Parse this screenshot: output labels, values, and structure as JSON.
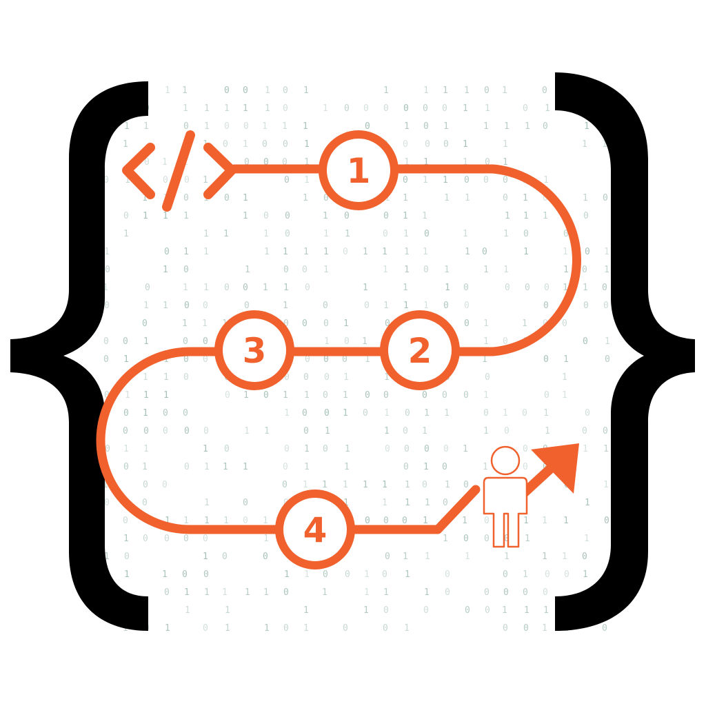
{
  "colors": {
    "accent": "#f0612d",
    "bracket": "#000000",
    "binary": "#8fb1a6",
    "background": "#ffffff"
  },
  "icons": {
    "code_tag": "code-tag-icon",
    "person": "person-icon",
    "arrow": "growth-arrow-icon",
    "left_brace": "left-curly-brace",
    "right_brace": "right-curly-brace"
  },
  "steps": [
    {
      "label": "1"
    },
    {
      "label": "2"
    },
    {
      "label": "3"
    },
    {
      "label": "4"
    }
  ]
}
